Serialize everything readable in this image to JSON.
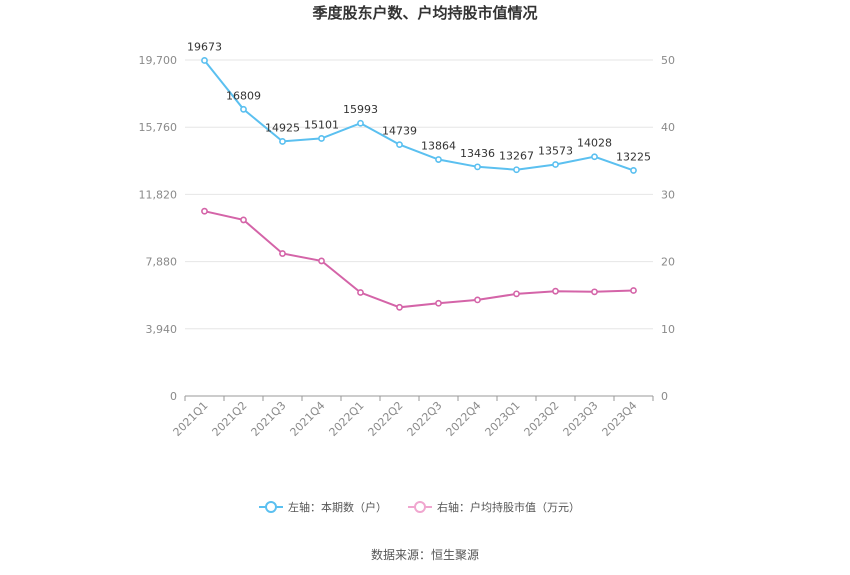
{
  "chart_data": {
    "type": "line",
    "title": "季度股东户数、户均持股市值情况",
    "categories": [
      "2021Q1",
      "2021Q2",
      "2021Q3",
      "2021Q4",
      "2022Q1",
      "2022Q2",
      "2022Q3",
      "2022Q4",
      "2023Q1",
      "2023Q2",
      "2023Q3",
      "2023Q4"
    ],
    "left_axis": {
      "min": 0,
      "max": 19700,
      "ticks": [
        0,
        3940,
        7880,
        11820,
        15760,
        19700
      ],
      "tick_labels": [
        "0",
        "3,940",
        "7,880",
        "11,820",
        "15,760",
        "19,700"
      ]
    },
    "right_axis": {
      "min": 0,
      "max": 50,
      "ticks": [
        0,
        10,
        20,
        30,
        40,
        50
      ],
      "tick_labels": [
        "0",
        "10",
        "20",
        "30",
        "40",
        "50"
      ]
    },
    "series": [
      {
        "name": "左轴：本期数（户）",
        "axis": "left",
        "color": "#5bc0f0",
        "values": [
          19673,
          16809,
          14925,
          15101,
          15993,
          14739,
          13864,
          13436,
          13267,
          13573,
          14028,
          13225
        ],
        "data_labels": [
          "19673",
          "16809",
          "14925",
          "15101",
          "15993",
          "14739",
          "13864",
          "13436",
          "13267",
          "13573",
          "14028",
          "13225"
        ]
      },
      {
        "name": "右轴：户均持股市值（万元）",
        "axis": "right",
        "color": "#d464a8",
        "values": [
          27.5,
          26.2,
          21.2,
          20.1,
          15.4,
          13.2,
          13.8,
          14.3,
          15.2,
          15.6,
          15.5,
          15.7
        ]
      }
    ],
    "legend_position": "bottom"
  },
  "source": "数据来源：恒生聚源"
}
